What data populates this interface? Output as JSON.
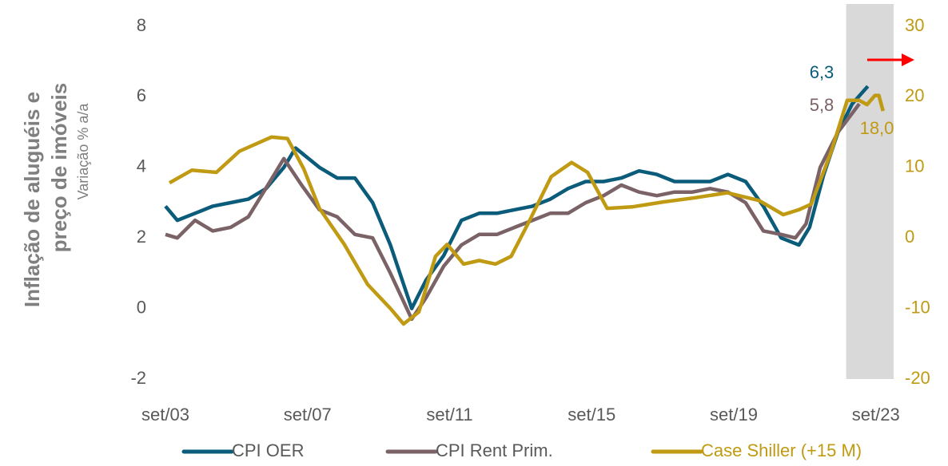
{
  "chart_data": {
    "type": "line",
    "ylabel": [
      "Inflação de aluguéis e",
      "preço de imóveis"
    ],
    "ylabel_sub": "Variação % a/a",
    "xlim": [
      2003.667,
      2024.167
    ],
    "xticks": [
      {
        "value": 2003.667,
        "label": "set/03"
      },
      {
        "value": 2007.667,
        "label": "set/07"
      },
      {
        "value": 2011.667,
        "label": "set/11"
      },
      {
        "value": 2015.667,
        "label": "set/15"
      },
      {
        "value": 2019.667,
        "label": "set/19"
      },
      {
        "value": 2023.667,
        "label": "set/23"
      }
    ],
    "ylim": [
      -2,
      8
    ],
    "yticks": [
      -2,
      0,
      2,
      4,
      6,
      8
    ],
    "y2lim": [
      -20,
      30
    ],
    "y2ticks": [
      -20,
      -10,
      0,
      10,
      20,
      30
    ],
    "y2_color": "#c09a12",
    "shaded_x": [
      2022.83,
      2024.167
    ],
    "series": [
      {
        "name": "CPI OER",
        "color": "#0b5c7a",
        "x": [
          2003.667,
          2004.0,
          2004.5,
          2005.0,
          2005.5,
          2006.0,
          2006.5,
          2007.0,
          2007.33,
          2008.0,
          2008.5,
          2009.0,
          2009.5,
          2010.0,
          2010.6,
          2011.0,
          2011.5,
          2012.0,
          2012.5,
          2013.0,
          2013.5,
          2014.0,
          2014.5,
          2015.0,
          2015.5,
          2016.0,
          2016.5,
          2017.0,
          2017.5,
          2018.0,
          2018.5,
          2019.0,
          2019.5,
          2020.0,
          2020.5,
          2021.0,
          2021.5,
          2021.8,
          2022.2,
          2022.6,
          2023.0,
          2023.44
        ],
        "values": [
          2.9,
          2.5,
          2.7,
          2.9,
          3.0,
          3.1,
          3.4,
          4.0,
          4.55,
          4.0,
          3.7,
          3.7,
          3.0,
          1.8,
          0.0,
          0.8,
          1.5,
          2.5,
          2.7,
          2.7,
          2.8,
          2.9,
          3.1,
          3.4,
          3.6,
          3.6,
          3.7,
          3.9,
          3.8,
          3.6,
          3.6,
          3.6,
          3.8,
          3.6,
          2.9,
          2.0,
          1.8,
          2.3,
          3.8,
          5.0,
          5.8,
          6.3
        ]
      },
      {
        "name": "CPI Rent Prim.",
        "color": "#7a6266",
        "x": [
          2003.667,
          2004.0,
          2004.5,
          2005.0,
          2005.5,
          2006.0,
          2006.43,
          2007.0,
          2007.5,
          2008.0,
          2008.5,
          2009.0,
          2009.5,
          2010.0,
          2010.6,
          2011.0,
          2011.5,
          2012.0,
          2012.5,
          2013.0,
          2013.5,
          2014.0,
          2014.5,
          2015.0,
          2015.5,
          2016.0,
          2016.5,
          2017.0,
          2017.5,
          2018.0,
          2018.5,
          2019.0,
          2019.5,
          2020.0,
          2020.5,
          2021.0,
          2021.4,
          2021.7,
          2022.1,
          2022.6,
          2023.2
        ],
        "values": [
          2.1,
          2.0,
          2.5,
          2.2,
          2.3,
          2.6,
          3.3,
          4.25,
          3.5,
          2.8,
          2.6,
          2.1,
          2.0,
          1.0,
          -0.3,
          0.3,
          1.2,
          1.8,
          2.1,
          2.1,
          2.3,
          2.5,
          2.7,
          2.7,
          3.0,
          3.2,
          3.5,
          3.3,
          3.2,
          3.3,
          3.3,
          3.4,
          3.3,
          3.0,
          2.2,
          2.1,
          2.0,
          2.4,
          4.0,
          5.0,
          5.8
        ]
      },
      {
        "name": "Case Shiller (+15 M)",
        "color": "#c09a12",
        "axis": "y2",
        "x": [
          2003.78,
          2004.41,
          2005.1,
          2005.75,
          2006.65,
          2007.1,
          2007.56,
          2008.0,
          2008.7,
          2009.36,
          2010.0,
          2010.37,
          2010.8,
          2011.27,
          2011.6,
          2012.06,
          2012.5,
          2012.96,
          2013.4,
          2013.86,
          2014.53,
          2015.1,
          2015.55,
          2016.1,
          2016.8,
          2017.68,
          2018.58,
          2019.48,
          2020.38,
          2021.06,
          2021.5,
          2021.85,
          2022.4,
          2022.86,
          2023.2,
          2023.42,
          2023.64,
          2023.75,
          2023.87
        ],
        "values": [
          7.8,
          9.6,
          9.3,
          12.3,
          14.3,
          14.1,
          9.8,
          4.2,
          -0.9,
          -6.6,
          -10,
          -12.2,
          -10.5,
          -2.6,
          -0.9,
          -3.7,
          -3.2,
          -3.7,
          -2.6,
          1.9,
          8.7,
          10.7,
          9.3,
          4.2,
          4.4,
          5.1,
          5.7,
          6.4,
          5.3,
          3.3,
          4.0,
          4.8,
          12.1,
          19.5,
          19.5,
          18.9,
          20.2,
          20.2,
          18.0
        ]
      }
    ],
    "annotations": [
      "6,3",
      "5,8",
      "18,0"
    ]
  }
}
